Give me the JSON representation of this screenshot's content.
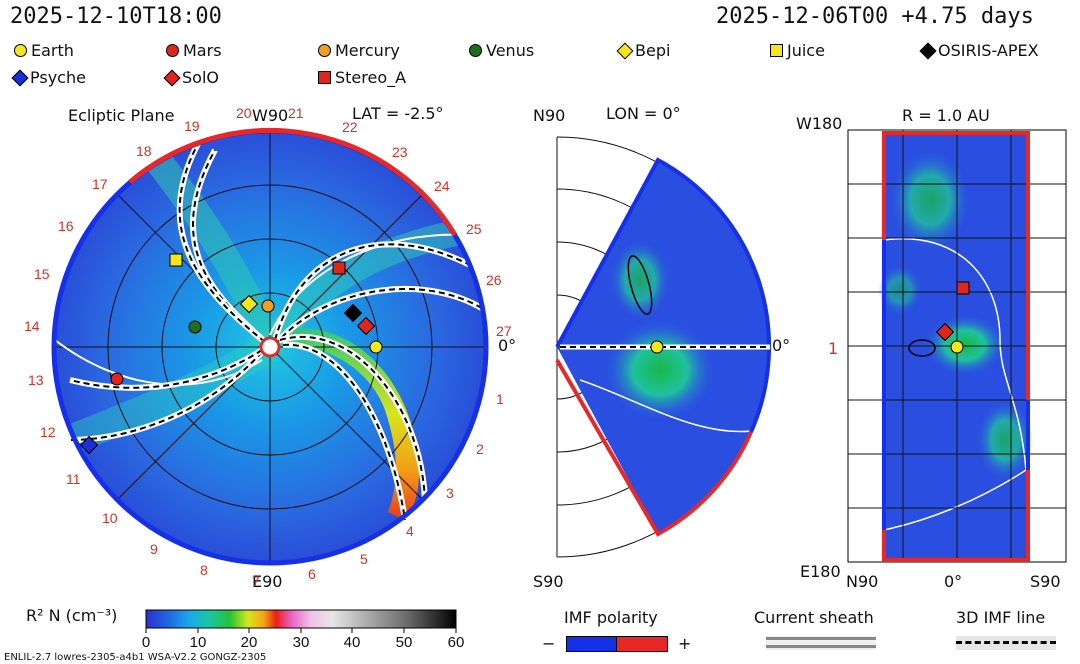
{
  "header": {
    "left_time": "2025-12-10T18:00",
    "right_time": "2025-12-06T00 +4.75 days"
  },
  "legend": [
    {
      "label": "Earth",
      "shape": "circle",
      "color": "#f4e81c"
    },
    {
      "label": "Mars",
      "shape": "circle",
      "color": "#e0251f"
    },
    {
      "label": "Mercury",
      "shape": "circle",
      "color": "#f0a020"
    },
    {
      "label": "Venus",
      "shape": "circle",
      "color": "#1f6d21"
    },
    {
      "label": "Bepi",
      "shape": "diamond",
      "color": "#f6e51a"
    },
    {
      "label": "Juice",
      "shape": "square",
      "color": "#f6e51a"
    },
    {
      "label": "OSIRIS-APEX",
      "shape": "diamond",
      "color": "#000000"
    },
    {
      "label": "Psyche",
      "shape": "diamond",
      "color": "#1a2fd6"
    },
    {
      "label": "SolO",
      "shape": "diamond",
      "color": "#e0251f"
    },
    {
      "label": "Stereo_A",
      "shape": "square",
      "color": "#e0251f"
    }
  ],
  "ecliptic": {
    "title": "Ecliptic Plane",
    "top_label": "W90",
    "bottom_label": "E90",
    "right_label": "0°",
    "lat_label": "LAT = -2.5°",
    "carrington_ticks": [
      "1",
      "2",
      "3",
      "4",
      "5",
      "6",
      "7",
      "8",
      "9",
      "10",
      "11",
      "12",
      "13",
      "14",
      "15",
      "16",
      "17",
      "18",
      "19",
      "20",
      "21",
      "22",
      "23",
      "24",
      "25",
      "26",
      "27"
    ]
  },
  "meridional": {
    "top_label": "N90",
    "bottom_label": "S90",
    "lon_label": "LON = 0°",
    "right_label": "0°"
  },
  "radial": {
    "title": "R = 1.0 AU",
    "top_left_label": "W180",
    "bottom_left_label": "E180",
    "mid_left_label": "1",
    "bottom_labels": [
      "N90",
      "0°",
      "S90"
    ]
  },
  "colorbar": {
    "label": "R² N (cm⁻³)",
    "ticks": [
      "0",
      "10",
      "20",
      "30",
      "40",
      "50",
      "60"
    ],
    "colors": [
      "#2a2fd0",
      "#2166e0",
      "#1aa8e8",
      "#19c7a8",
      "#25c338",
      "#d6e61c",
      "#f6a414",
      "#e82018",
      "#e864c8",
      "#f0c0e8",
      "#e0e0e0",
      "#a8a8a8",
      "#6c6c6c",
      "#303030",
      "#000000"
    ]
  },
  "imf_polarity": {
    "label": "IMF polarity",
    "minus": "−",
    "plus": "+",
    "negative_color": "#1530e8",
    "positive_color": "#e82828"
  },
  "current_sheath": {
    "label": "Current sheath"
  },
  "imf_line": {
    "label": "3D IMF line"
  },
  "footer": "ENLIL-2.7 lowres-2305-a4b1 WSA-V2.2 GONGZ-2305"
}
